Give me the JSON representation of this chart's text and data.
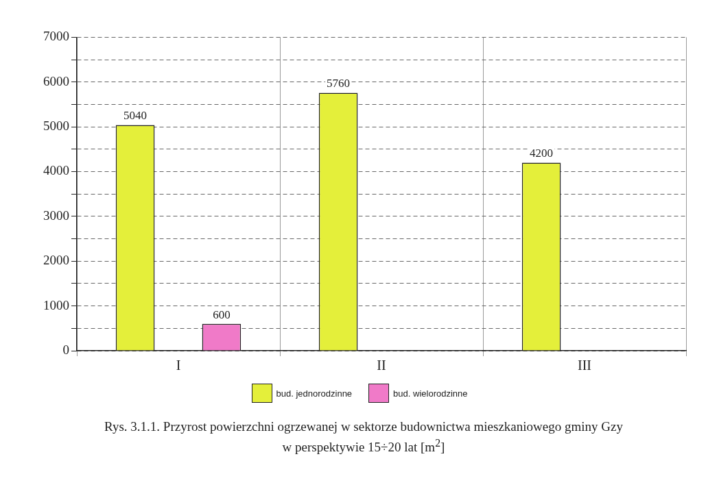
{
  "chart_data": {
    "type": "bar",
    "title": "Rys. 3.1.1. Przyrost powierzchni ogrzewanej w sektorze budownictwa mieszkaniowego gminy Gzy w perspektywie 15÷20 lat  [m$^{2}$]",
    "categories": [
      "I",
      "II",
      "III"
    ],
    "series": [
      {
        "name": "bud. jednorodzinne",
        "color": "#e4ef3a",
        "values": [
          5040,
          5760,
          4200
        ]
      },
      {
        "name": "bud. wielorodzinne",
        "color": "#f07ac8",
        "values": [
          600,
          null,
          null
        ]
      }
    ],
    "ylim": [
      0,
      7000
    ],
    "yticks": [
      0,
      {
        "value": 500,
        "label": null
      },
      1000,
      {
        "value": 1500,
        "label": null
      },
      2000,
      {
        "value": 2500,
        "label": null
      },
      3000,
      {
        "value": 3500,
        "label": null
      },
      4000,
      {
        "value": 4500,
        "label": null
      },
      5000,
      {
        "value": 5500,
        "label": null
      },
      6000,
      {
        "value": 6500,
        "label": null
      },
      7000
    ],
    "grid": true,
    "legend": "bottom",
    "data_labels": true
  }
}
